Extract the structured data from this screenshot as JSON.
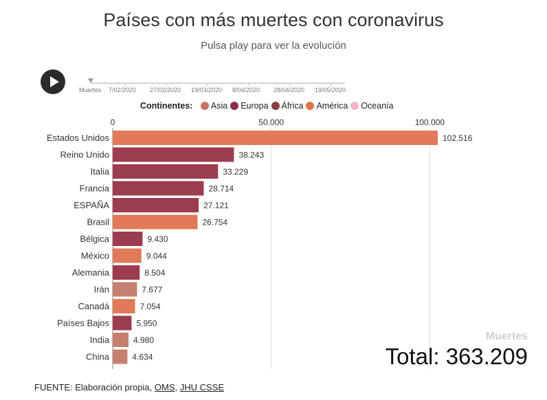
{
  "title": "Países con más muertes con coronavirus",
  "subtitle": "Pulsa play para ver la evolución",
  "player": {
    "timeline_label": "Muertes",
    "dates": [
      "7/02/2020",
      "27/02/2020",
      "19/03/2020",
      "8/04/2020",
      "28/04/2020",
      "19/05/2020"
    ]
  },
  "legend": {
    "title": "Continentes:",
    "items": [
      {
        "label": "Asia",
        "color": "#c97561"
      },
      {
        "label": "Europa",
        "color": "#8e2c44"
      },
      {
        "label": "África",
        "color": "#8a4040"
      },
      {
        "label": "América",
        "color": "#e07648"
      },
      {
        "label": "Oceanía",
        "color": "#f4b6bf"
      }
    ]
  },
  "chart_data": {
    "type": "bar",
    "orientation": "horizontal",
    "categories": [
      "Estados Unidos",
      "Reino Unido",
      "Italia",
      "Francia",
      "ESPAÑA",
      "Brasil",
      "Bélgica",
      "México",
      "Alemania",
      "Irán",
      "Canadá",
      "Países Bajos",
      "India",
      "China"
    ],
    "values": [
      102516,
      38243,
      33229,
      28714,
      27121,
      26754,
      9430,
      9044,
      8504,
      7677,
      7054,
      5950,
      4980,
      4634
    ],
    "value_labels": [
      "102.516",
      "38.243",
      "33.229",
      "28.714",
      "27.121",
      "26.754",
      "9.430",
      "9.044",
      "8.504",
      "7.677",
      "7.054",
      "5.950",
      "4.980",
      "4.634"
    ],
    "continents": [
      "América",
      "Europa",
      "Europa",
      "Europa",
      "Europa",
      "América",
      "Europa",
      "América",
      "Europa",
      "Asia",
      "América",
      "Europa",
      "Asia",
      "Asia"
    ],
    "colors": {
      "América": "#e07a58",
      "Europa": "#9c3c50",
      "Asia": "#c48070"
    },
    "xlim": [
      0,
      102516
    ],
    "x_ticks": [
      0,
      50000,
      100000
    ],
    "x_tick_labels": [
      "0",
      "50.000",
      "100.000"
    ],
    "grid": true
  },
  "corner_label": "Muertes",
  "total": "Total: 363.209",
  "source": {
    "prefix": "FUENTE: Elaboración propia,",
    "links": [
      "OMS",
      "JHU CSSE"
    ]
  }
}
